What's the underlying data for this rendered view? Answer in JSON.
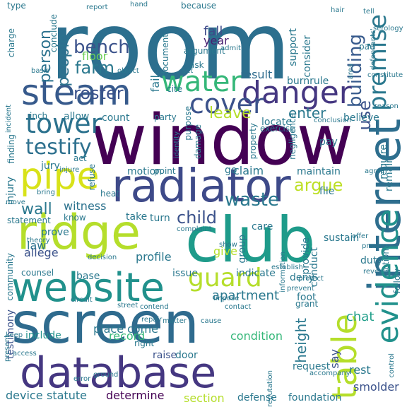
{
  "words": [
    {
      "text": "room",
      "color": "#2c6f8e"
    },
    {
      "text": "window",
      "color": "#440154"
    },
    {
      "text": "radiator",
      "color": "#3e4a89"
    },
    {
      "text": "club",
      "color": "#1e9b8a"
    },
    {
      "text": "screen",
      "color": "#2f6b8e"
    },
    {
      "text": "database",
      "color": "#453781"
    },
    {
      "text": "ridge",
      "color": "#b5de2b"
    },
    {
      "text": "website",
      "color": "#21918c"
    },
    {
      "text": "internet",
      "color": "#2e6e8e"
    },
    {
      "text": "table",
      "color": "#b5de2b"
    },
    {
      "text": "steam",
      "color": "#375a8c"
    },
    {
      "text": "danger",
      "color": "#453781"
    },
    {
      "text": "water",
      "color": "#35b779"
    },
    {
      "text": "cover",
      "color": "#3b528b"
    },
    {
      "text": "tower",
      "color": "#2c728e"
    },
    {
      "text": "pipe",
      "color": "#d8e219"
    },
    {
      "text": "testify",
      "color": "#2d708e"
    },
    {
      "text": "evidence",
      "color": "#21918c"
    },
    {
      "text": "guard",
      "color": "#b5de2b"
    },
    {
      "text": "premise",
      "color": "#2a788e"
    },
    {
      "text": "building",
      "color": "#375a8c"
    },
    {
      "text": "use",
      "color": "#3b528b"
    },
    {
      "text": "bench",
      "color": "#3b528b"
    },
    {
      "text": "farm",
      "color": "#2a788e"
    },
    {
      "text": "people",
      "color": "#2c728e"
    },
    {
      "text": "person",
      "color": "#2c728e"
    },
    {
      "text": "roster",
      "color": "#3b528b"
    },
    {
      "text": "fall",
      "color": "#3e4a89"
    },
    {
      "text": "fail",
      "color": "#2a788e"
    },
    {
      "text": "floor",
      "color": "#6ece58"
    },
    {
      "text": "year",
      "color": "#481f70"
    },
    {
      "text": "argue",
      "color": "#bddf26"
    },
    {
      "text": "child",
      "color": "#3b528b"
    },
    {
      "text": "waste",
      "color": "#2a788e"
    },
    {
      "text": "wall",
      "color": "#2a788e"
    },
    {
      "text": "leave",
      "color": "#b5de2b"
    },
    {
      "text": "enter",
      "color": "#2a788e"
    },
    {
      "text": "result",
      "color": "#2f6c8e"
    },
    {
      "text": "apartment",
      "color": "#2a788e"
    },
    {
      "text": "profile",
      "color": "#2a788e"
    },
    {
      "text": "allege",
      "color": "#3b528b"
    },
    {
      "text": "law",
      "color": "#2c728e"
    },
    {
      "text": "witness",
      "color": "#2c728e"
    },
    {
      "text": "give",
      "color": "#b5de2b"
    },
    {
      "text": "height",
      "color": "#2a788e"
    },
    {
      "text": "record",
      "color": "#35b779"
    },
    {
      "text": "come",
      "color": "#2a788e"
    },
    {
      "text": "place",
      "color": "#2a788e"
    },
    {
      "text": "condition",
      "color": "#35b779"
    },
    {
      "text": "section",
      "color": "#b5de2b"
    },
    {
      "text": "statute",
      "color": "#2a788e"
    },
    {
      "text": "determine",
      "color": "#440154"
    },
    {
      "text": "smolder",
      "color": "#3b528b"
    },
    {
      "text": "rest",
      "color": "#2a788e"
    },
    {
      "text": "say",
      "color": "#3b528b"
    },
    {
      "text": "request",
      "color": "#2a788e"
    },
    {
      "text": "chat",
      "color": "#1f9e89"
    },
    {
      "text": "device",
      "color": "#2a788e"
    },
    {
      "text": "include",
      "color": "#21918c"
    },
    {
      "text": "testimony",
      "color": "#3b528b"
    },
    {
      "text": "base",
      "color": "#2a788e"
    },
    {
      "text": "door",
      "color": "#2a788e"
    },
    {
      "text": "raise",
      "color": "#3b528b"
    },
    {
      "text": "defense",
      "color": "#2a788e"
    },
    {
      "text": "foundation",
      "color": "#2a788e"
    },
    {
      "text": "maintain",
      "color": "#2a788e"
    },
    {
      "text": "require",
      "color": "#2a788e"
    },
    {
      "text": "remain",
      "color": "#2a788e"
    },
    {
      "text": "believe",
      "color": "#2a788e"
    },
    {
      "text": "pay",
      "color": "#2a788e"
    },
    {
      "text": "file",
      "color": "#2a788e"
    },
    {
      "text": "sustain",
      "color": "#2a788e"
    },
    {
      "text": "action",
      "color": "#2a788e"
    },
    {
      "text": "duty",
      "color": "#2a788e"
    },
    {
      "text": "provide",
      "color": "#2a788e"
    },
    {
      "text": "conduct",
      "color": "#2a788e"
    },
    {
      "text": "deny",
      "color": "#2a788e"
    },
    {
      "text": "foot",
      "color": "#2a788e"
    },
    {
      "text": "care",
      "color": "#2a788e"
    },
    {
      "text": "group",
      "color": "#2a788e"
    },
    {
      "text": "issue",
      "color": "#2a788e"
    },
    {
      "text": "indicate",
      "color": "#2a788e"
    },
    {
      "text": "take",
      "color": "#2a788e"
    },
    {
      "text": "turn",
      "color": "#2a788e"
    },
    {
      "text": "prove",
      "color": "#2a788e"
    },
    {
      "text": "know",
      "color": "#2a788e"
    },
    {
      "text": "heat",
      "color": "#2a788e"
    },
    {
      "text": "refuse",
      "color": "#2a788e"
    },
    {
      "text": "injury",
      "color": "#2a788e"
    },
    {
      "text": "jury",
      "color": "#2a788e"
    },
    {
      "text": "act",
      "color": "#2a788e"
    },
    {
      "text": "motion",
      "color": "#2a788e"
    },
    {
      "text": "point",
      "color": "#2a788e"
    },
    {
      "text": "claim",
      "color": "#2a788e"
    },
    {
      "text": "go",
      "color": "#2a788e"
    },
    {
      "text": "purpose",
      "color": "#2a788e"
    },
    {
      "text": "damage",
      "color": "#2a788e"
    },
    {
      "text": "count",
      "color": "#2a788e"
    },
    {
      "text": "party",
      "color": "#2a788e"
    },
    {
      "text": "allow",
      "color": "#2a788e"
    },
    {
      "text": "inch",
      "color": "#2a788e"
    },
    {
      "text": "finding",
      "color": "#2a788e"
    },
    {
      "text": "charge",
      "color": "#2a788e"
    },
    {
      "text": "conclude",
      "color": "#2a788e"
    },
    {
      "text": "support",
      "color": "#2a788e"
    },
    {
      "text": "consider",
      "color": "#2a788e"
    },
    {
      "text": "burnrule",
      "color": "#2a788e"
    },
    {
      "text": "locate",
      "color": "#2a788e"
    },
    {
      "text": "exercise",
      "color": "#2a788e"
    },
    {
      "text": "ask",
      "color": "#2a788e"
    },
    {
      "text": "argument",
      "color": "#2a788e"
    },
    {
      "text": "document",
      "color": "#2a788e"
    },
    {
      "text": "admit",
      "color": "#2a788e"
    },
    {
      "text": "cite",
      "color": "#2a788e"
    },
    {
      "text": "identity",
      "color": "#2a788e"
    },
    {
      "text": "property",
      "color": "#2a788e"
    },
    {
      "text": "negligence",
      "color": "#2a788e"
    },
    {
      "text": "reason",
      "color": "#2a788e"
    },
    {
      "text": "conclusion",
      "color": "#2a788e"
    },
    {
      "text": "area",
      "color": "#2a788e"
    },
    {
      "text": "pad",
      "color": "#2a788e"
    },
    {
      "text": "tell",
      "color": "#2a788e"
    },
    {
      "text": "serology",
      "color": "#2a788e"
    },
    {
      "text": "defendants'",
      "color": "#2a788e"
    },
    {
      "text": "hair",
      "color": "#2a788e"
    },
    {
      "text": "because",
      "color": "#2a788e"
    },
    {
      "text": "hand",
      "color": "#2a788e"
    },
    {
      "text": "report",
      "color": "#2a788e"
    },
    {
      "text": "type",
      "color": "#2a788e"
    },
    {
      "text": "basis",
      "color": "#2a788e"
    },
    {
      "text": "object",
      "color": "#2a788e"
    },
    {
      "text": "set",
      "color": "#2a788e"
    },
    {
      "text": "constitute",
      "color": "#2a788e"
    },
    {
      "text": "incident",
      "color": "#2a788e"
    },
    {
      "text": "injure",
      "color": "#2a788e"
    },
    {
      "text": "move",
      "color": "#2a788e"
    },
    {
      "text": "bring",
      "color": "#2a788e"
    },
    {
      "text": "statement",
      "color": "#2a788e"
    },
    {
      "text": "theory",
      "color": "#2a788e"
    },
    {
      "text": "community",
      "color": "#2a788e"
    },
    {
      "text": "counsel",
      "color": "#2a788e"
    },
    {
      "text": "complaint",
      "color": "#2a788e"
    },
    {
      "text": "show",
      "color": "#2a788e"
    },
    {
      "text": "decision",
      "color": "#2a788e"
    },
    {
      "text": "establish",
      "color": "#2a788e"
    },
    {
      "text": "information",
      "color": "#2a788e"
    },
    {
      "text": "offer",
      "color": "#2a788e"
    },
    {
      "text": "process",
      "color": "#2a788e"
    },
    {
      "text": "reverse",
      "color": "#2a788e"
    },
    {
      "text": "follow",
      "color": "#2a788e"
    },
    {
      "text": "protect",
      "color": "#2a788e"
    },
    {
      "text": "prevent",
      "color": "#2a788e"
    },
    {
      "text": "grant",
      "color": "#2a788e"
    },
    {
      "text": "impose",
      "color": "#2a788e"
    },
    {
      "text": "contact",
      "color": "#2a788e"
    },
    {
      "text": "circuit",
      "color": "#2a788e"
    },
    {
      "text": "street",
      "color": "#2a788e"
    },
    {
      "text": "contend",
      "color": "#2a788e"
    },
    {
      "text": "repair",
      "color": "#2a788e"
    },
    {
      "text": "matter",
      "color": "#2a788e"
    },
    {
      "text": "cause",
      "color": "#2a788e"
    },
    {
      "text": "right",
      "color": "#2a788e"
    },
    {
      "text": "ground",
      "color": "#2a788e"
    },
    {
      "text": "error",
      "color": "#2a788e"
    },
    {
      "text": "access",
      "color": "#2a788e"
    },
    {
      "text": "control",
      "color": "#2a788e"
    },
    {
      "text": "accompany",
      "color": "#2a788e"
    },
    {
      "text": "reputation",
      "color": "#2a788e"
    },
    {
      "text": "keep",
      "color": "#2a788e"
    },
    {
      "text": "present",
      "color": "#2a788e"
    },
    {
      "text": "agree",
      "color": "#2a788e"
    }
  ]
}
